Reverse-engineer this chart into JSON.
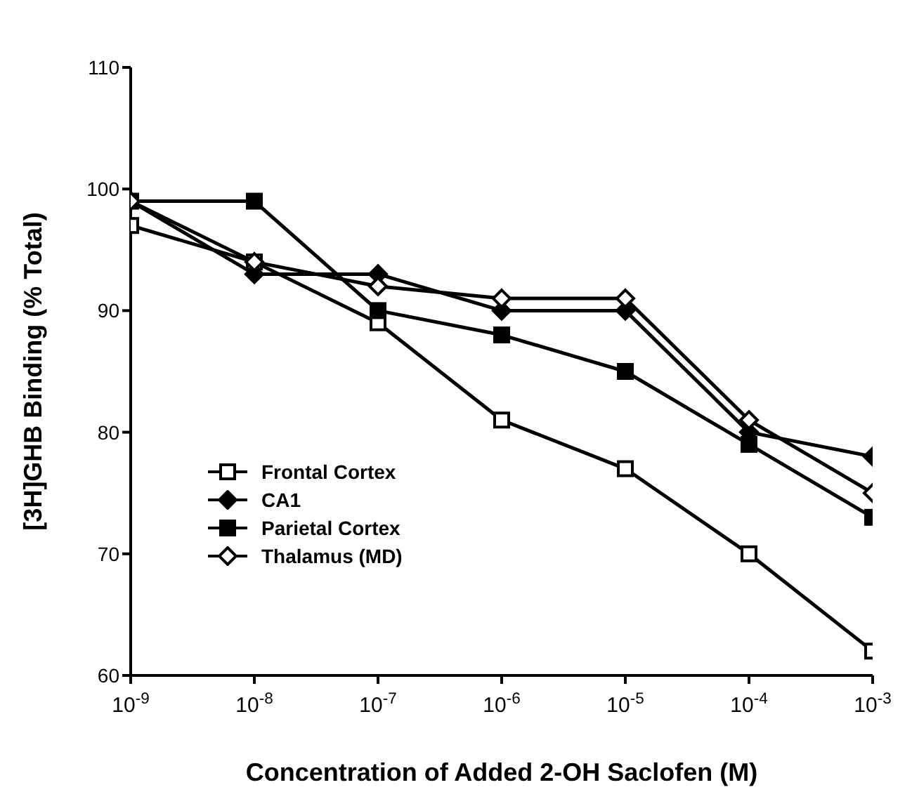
{
  "chart_data": {
    "type": "line",
    "xlabel": "Concentration of Added 2-OH Saclofen (M)",
    "ylabel": "[3H]GHB Binding (% Total)",
    "x": [
      1e-09,
      1e-08,
      1e-07,
      1e-06,
      1e-05,
      0.0001,
      0.001
    ],
    "log": "x",
    "xlim": [
      1e-09,
      0.001
    ],
    "xticks": [
      {
        "value": 1e-09,
        "label": "10$^{-9}$"
      },
      {
        "value": 1e-08,
        "label": "10$^{-8}$"
      },
      {
        "value": 1e-07,
        "label": "10$^{-7}$"
      },
      {
        "value": 1e-06,
        "label": "10$^{-6}$"
      },
      {
        "value": 1e-05,
        "label": "10$^{-5}$"
      },
      {
        "value": 0.0001,
        "label": "10$^{-4}$"
      },
      {
        "value": 0.001,
        "label": "10$^{-3}$"
      }
    ],
    "ylim": [
      60,
      110
    ],
    "yticks": [
      60,
      70,
      80,
      90,
      100,
      110
    ],
    "grid": false,
    "legend": "bottom left",
    "line_style": "solid",
    "series": [
      {
        "name": "Frontal Cortex",
        "color": "#000000",
        "marker": "square",
        "values": [
          97,
          94,
          89,
          81,
          77,
          70,
          62
        ]
      },
      {
        "name": "CA1",
        "color": "#000000",
        "marker": "diamond",
        "values": [
          99,
          93,
          93,
          90,
          90,
          80,
          78
        ]
      },
      {
        "name": "Parietal Cortex",
        "color": "#000000",
        "marker": "square",
        "values": [
          99,
          99,
          90,
          88,
          85,
          79,
          73
        ]
      },
      {
        "name": "Thalamus (MD)",
        "color": "#000000",
        "marker": "diamond",
        "values": [
          99,
          94,
          92,
          91,
          91,
          81,
          75
        ]
      }
    ]
  }
}
